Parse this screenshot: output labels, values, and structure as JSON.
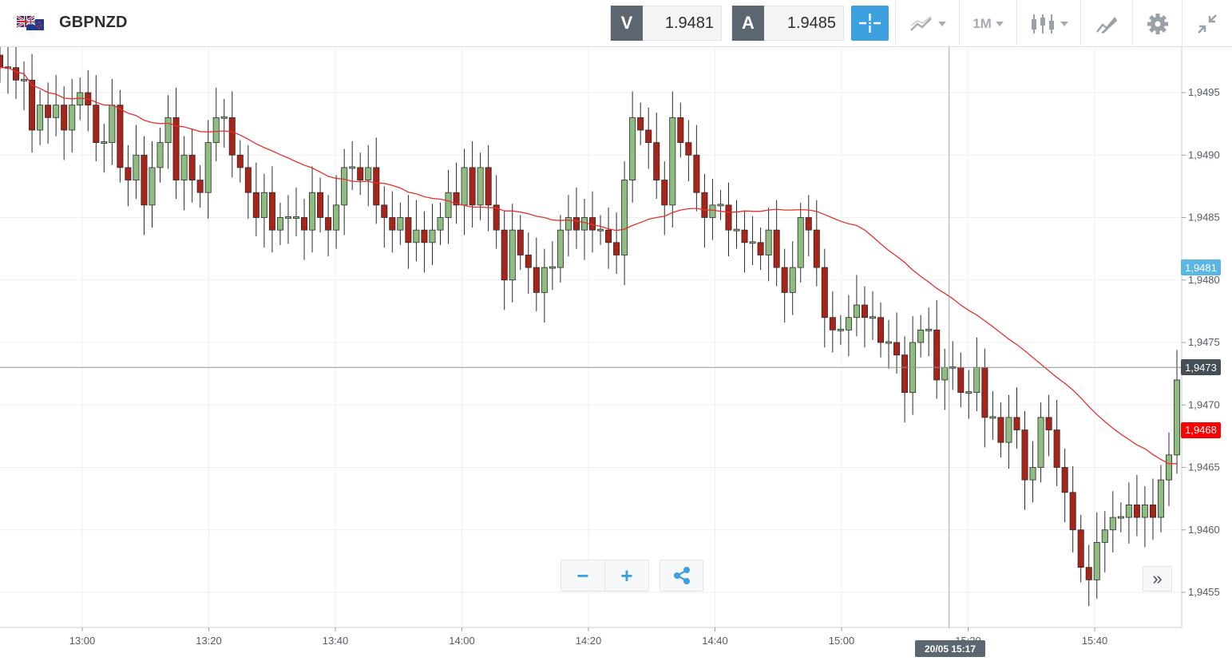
{
  "header": {
    "symbol": "GBPNZD",
    "flag_icon": "gb-nz-flag-icon",
    "sell": {
      "badge": "V",
      "value": "1.9481"
    },
    "buy": {
      "badge": "A",
      "value": "1.9485"
    },
    "timeframe_label": "1M",
    "tools": [
      "crosshair-icon",
      "chart-type-icon",
      "timeframe-selector",
      "candles-icon",
      "drawing-icon",
      "gear-icon",
      "collapse-icon"
    ]
  },
  "colors": {
    "bull": "#8fbc80",
    "bear": "#a82318",
    "ma_line": "#e8302c",
    "accent": "#3da0df",
    "bid_tag": "#5bb6e4",
    "current_tag": "#454d55",
    "ma_tag": "#ff0000"
  },
  "controls": {
    "zoom_out_label": "−",
    "zoom_in_label": "+",
    "scroll_label": "»"
  },
  "crosshair_date": "20/05 15:17",
  "chart_data": {
    "type": "candlestick",
    "y_ticks": [
      "1,9495",
      "1,9490",
      "1,9485",
      "1,9480",
      "1,9475",
      "1,9470",
      "1,9465",
      "1,9460",
      "1,9455"
    ],
    "y_tick_values": [
      1.9495,
      1.949,
      1.9485,
      1.948,
      1.9475,
      1.947,
      1.9465,
      1.946,
      1.9455
    ],
    "ylim": [
      1.94523,
      1.94991
    ],
    "x_ticks": [
      "13:00",
      "13:20",
      "13:40",
      "14:00",
      "14:20",
      "14:40",
      "15:00",
      "15:20",
      "15:40"
    ],
    "x_tick_minutes": [
      780,
      800,
      820,
      840,
      860,
      880,
      900,
      920,
      940
    ],
    "x_first_minute": 767,
    "x_last_minute": 953,
    "markers": {
      "bid": {
        "label": "1,9481",
        "value": 1.9481
      },
      "current": {
        "label": "1,9473",
        "value": 1.9473
      },
      "moving_average": {
        "label": "1,9468",
        "value": 1.9468
      }
    },
    "crosshair_price": 1.9473,
    "crosshair_minute": 917,
    "closes": [
      1.9497,
      1.9497,
      1.9496,
      1.9496,
      1.9492,
      1.9494,
      1.9493,
      1.9494,
      1.9492,
      1.9494,
      1.9495,
      1.9494,
      1.9491,
      1.9491,
      1.9494,
      1.9489,
      1.9488,
      1.949,
      1.9486,
      1.9489,
      1.9491,
      1.9493,
      1.9488,
      1.949,
      1.9488,
      1.9487,
      1.9491,
      1.9493,
      1.9493,
      1.949,
      1.9489,
      1.9487,
      1.9485,
      1.9487,
      1.9484,
      1.9485,
      1.9485,
      1.9485,
      1.9484,
      1.9487,
      1.9485,
      1.9484,
      1.9486,
      1.9489,
      1.9489,
      1.9488,
      1.9489,
      1.9486,
      1.9485,
      1.9484,
      1.9485,
      1.9483,
      1.9484,
      1.9483,
      1.9484,
      1.9485,
      1.9487,
      1.9486,
      1.9489,
      1.9486,
      1.9489,
      1.9486,
      1.9484,
      1.948,
      1.9484,
      1.9482,
      1.9481,
      1.9479,
      1.9481,
      1.9481,
      1.9484,
      1.9485,
      1.9484,
      1.9485,
      1.9484,
      1.9484,
      1.9483,
      1.9482,
      1.9488,
      1.9493,
      1.9492,
      1.9491,
      1.9488,
      1.9486,
      1.9493,
      1.9491,
      1.949,
      1.9487,
      1.9485,
      1.9486,
      1.9486,
      1.9484,
      1.9484,
      1.9483,
      1.9483,
      1.9482,
      1.9484,
      1.9481,
      1.9479,
      1.9481,
      1.9485,
      1.9484,
      1.9481,
      1.9477,
      1.9476,
      1.9476,
      1.9477,
      1.9478,
      1.9477,
      1.9477,
      1.9475,
      1.9475,
      1.9474,
      1.9471,
      1.9475,
      1.9476,
      1.9476,
      1.9472,
      1.9473,
      1.9473,
      1.9471,
      1.9471,
      1.9473,
      1.9469,
      1.9469,
      1.9467,
      1.9469,
      1.9468,
      1.9464,
      1.9465,
      1.9469,
      1.9468,
      1.9465,
      1.9463,
      1.946,
      1.9457,
      1.9456,
      1.9459,
      1.946,
      1.9461,
      1.9461,
      1.9462,
      1.9461,
      1.9462,
      1.9461,
      1.9464,
      1.9466,
      1.9472
    ]
  }
}
